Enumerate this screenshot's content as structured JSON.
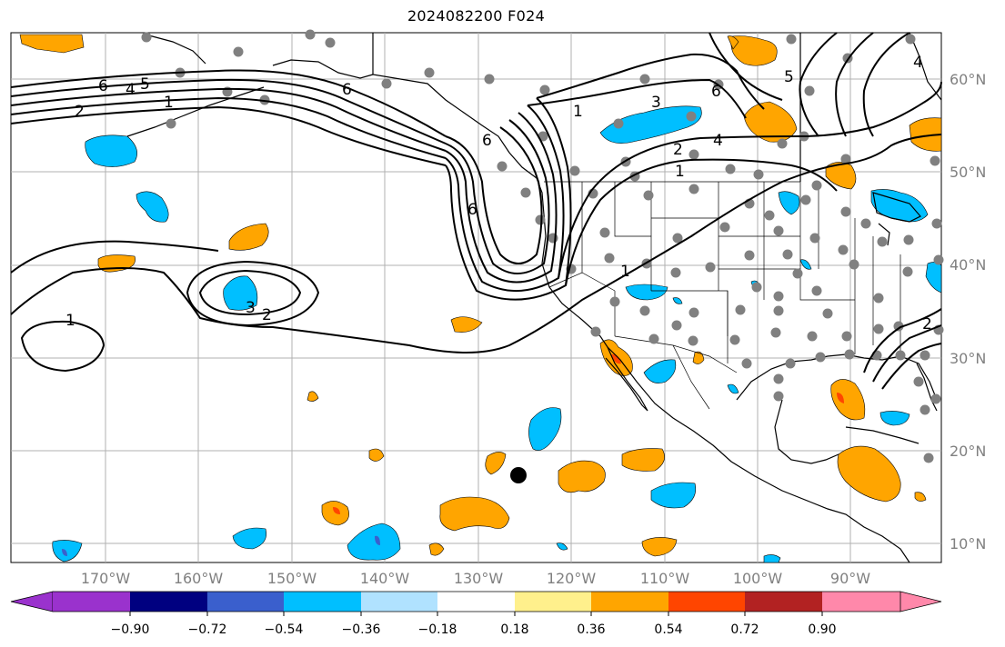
{
  "title": "2024082200 F024",
  "map": {
    "lon_labels": [
      "170°W",
      "160°W",
      "150°W",
      "140°W",
      "130°W",
      "120°W",
      "110°W",
      "100°W",
      "90°W"
    ],
    "lat_labels": [
      "60°N",
      "50°N",
      "40°N",
      "30°N",
      "20°N",
      "10°N"
    ],
    "contour_labels": [
      "6",
      "4",
      "5",
      "2",
      "1",
      "6",
      "6",
      "6",
      "1",
      "3",
      "6",
      "2",
      "4",
      "1",
      "5",
      "4",
      "3",
      "2",
      "1",
      "1",
      "2"
    ],
    "colors": {
      "land_line": "#000000",
      "grid": "#b0b0b0",
      "station": "#808080",
      "marker": "#000000"
    }
  },
  "colorbar": {
    "ticks": [
      "−0.90",
      "−0.72",
      "−0.54",
      "−0.36",
      "−0.18",
      "0.18",
      "0.36",
      "0.54",
      "0.72",
      "0.90"
    ],
    "colors": [
      "#9a32cd",
      "#000080",
      "#3a5fcd",
      "#00bfff",
      "#b0e2ff",
      "#ffffff",
      "#fff08c",
      "#ffa500",
      "#ff4500",
      "#b22222",
      "#ff88aa"
    ]
  }
}
